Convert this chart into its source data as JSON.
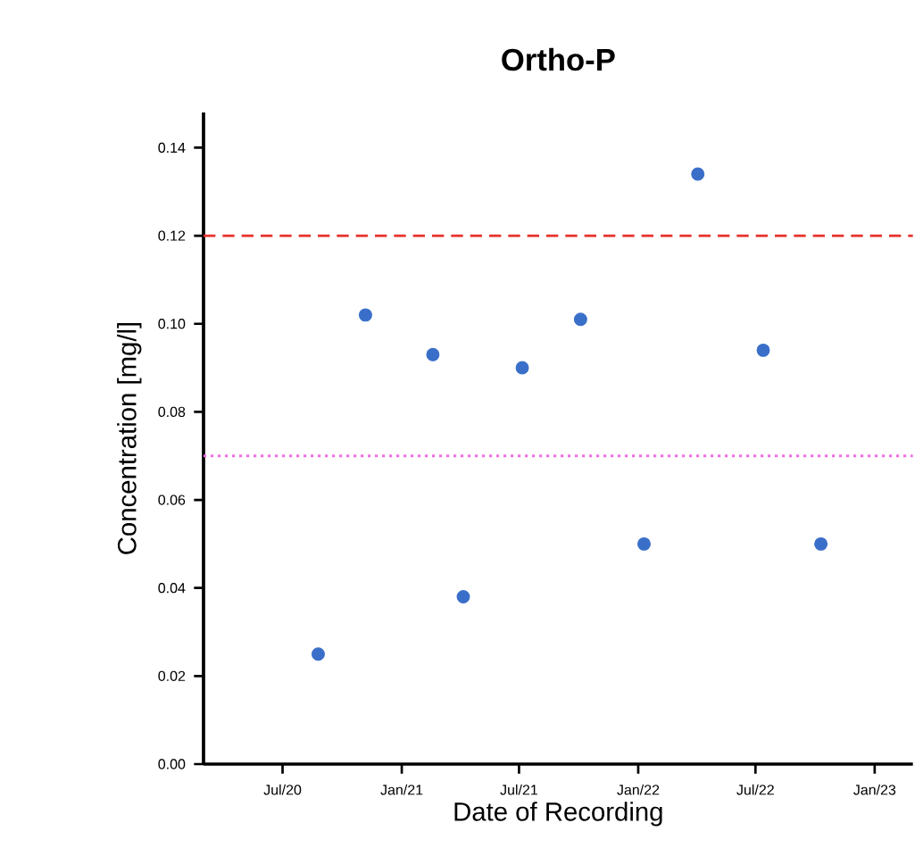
{
  "chart_data": {
    "type": "scatter",
    "title": "Ortho-P",
    "xlabel": "Date of Recording",
    "ylabel": "Concentration [mg/l]",
    "x": [
      "2020-08-25",
      "2020-11-06",
      "2021-02-18",
      "2021-04-06",
      "2021-07-06",
      "2021-10-04",
      "2022-01-10",
      "2022-04-03",
      "2022-07-13",
      "2022-10-10"
    ],
    "series": [
      {
        "color": "#3a6fc9",
        "values": [
          0.025,
          0.102,
          0.093,
          0.038,
          0.09,
          0.101,
          0.05,
          0.134,
          0.094,
          0.05
        ]
      }
    ],
    "marker": "circle",
    "xlim": [
      "2020-03-01",
      "2023-03-01"
    ],
    "ylim": [
      0,
      0.148
    ],
    "xticks": [
      {
        "value": "2020-07-01",
        "label": "Jul/20"
      },
      {
        "value": "2021-01-01",
        "label": "Jan/21"
      },
      {
        "value": "2021-07-01",
        "label": "Jul/21"
      },
      {
        "value": "2022-01-01",
        "label": "Jan/22"
      },
      {
        "value": "2022-07-01",
        "label": "Jul/22"
      },
      {
        "value": "2023-01-01",
        "label": "Jan/23"
      }
    ],
    "yticks": [
      {
        "value": 0,
        "label": "0.00"
      },
      {
        "value": 0.02,
        "label": "0.02"
      },
      {
        "value": 0.04,
        "label": "0.04"
      },
      {
        "value": 0.06,
        "label": "0.06"
      },
      {
        "value": 0.08,
        "label": "0.08"
      },
      {
        "value": 0.1,
        "label": "0.10"
      },
      {
        "value": 0.12,
        "label": "0.12"
      },
      {
        "value": 0.14,
        "label": "0.14"
      }
    ],
    "ref_lines": [
      {
        "axis": "y",
        "value": 0.12,
        "color": "#e8302a",
        "line_style": "dashed"
      },
      {
        "axis": "y",
        "value": 0.07,
        "color": "#f070e0",
        "line_style": "dotted"
      }
    ]
  }
}
